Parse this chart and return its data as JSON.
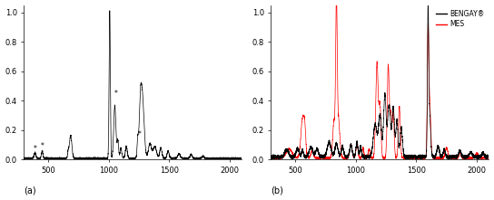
{
  "fig_width": 5.44,
  "fig_height": 2.21,
  "dpi": 100,
  "background_color": "#ffffff",
  "panel_a": {
    "label": "(a)",
    "xlim": [
      300,
      2100
    ],
    "ylim": [
      0.0,
      1.05
    ],
    "xticks": [
      500,
      1000,
      1500,
      2000
    ],
    "yticks": [
      0.0,
      0.2,
      0.4,
      0.6,
      0.8,
      1.0
    ],
    "line_color": "#000000",
    "star_positions": [
      [
        390,
        0.045
      ],
      [
        450,
        0.06
      ],
      [
        1060,
        0.42
      ],
      [
        1255,
        0.14
      ]
    ]
  },
  "panel_b": {
    "label": "(b)",
    "xlim": [
      300,
      2100
    ],
    "ylim": [
      0.0,
      1.05
    ],
    "xticks": [
      500,
      1000,
      1500,
      2000
    ],
    "yticks": [
      0.0,
      0.2,
      0.4,
      0.6,
      0.8,
      1.0
    ],
    "bengay_color": "#000000",
    "mes_color": "#ff0000",
    "legend_labels": [
      "BENGAY®",
      "MES"
    ]
  }
}
